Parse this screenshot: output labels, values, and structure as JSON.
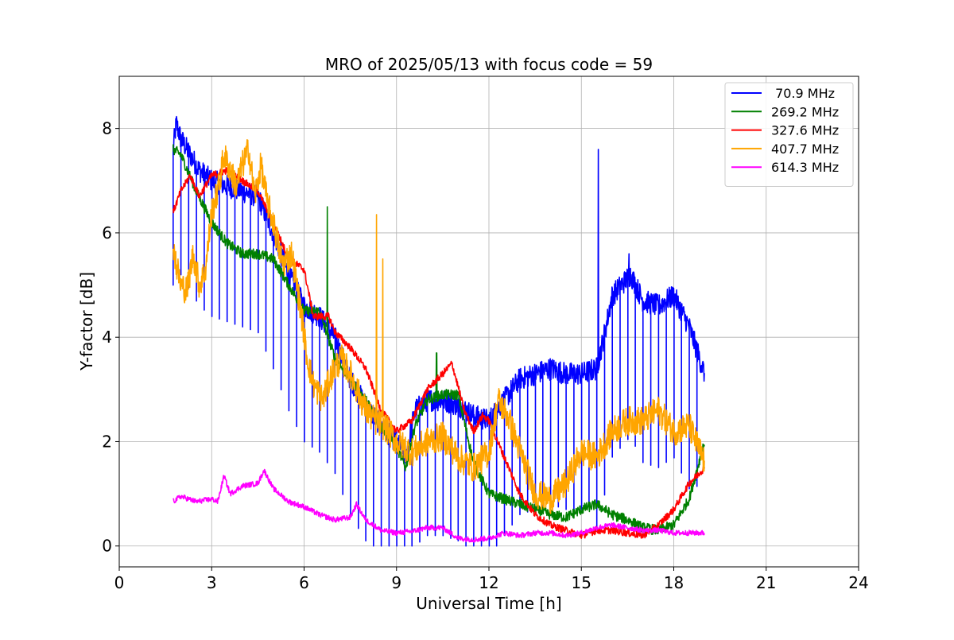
{
  "chart_data": {
    "type": "line",
    "title": "MRO of 2025/05/13 with focus code = 59",
    "xlabel": "Universal Time [h]",
    "ylabel": "Y-factor [dB]",
    "xlim": [
      0,
      24
    ],
    "ylim": [
      -0.4,
      9.0
    ],
    "xticks": [
      0,
      3,
      6,
      9,
      12,
      15,
      18,
      21,
      24
    ],
    "yticks": [
      0,
      2,
      4,
      6,
      8
    ],
    "grid": true,
    "legend_position": "top-right",
    "series": [
      {
        "name": " 70.9 MHz",
        "color": "#0000ff",
        "noise": 0.22,
        "dips": true,
        "x": [
          1.75,
          1.85,
          2.0,
          2.3,
          2.6,
          3.0,
          3.5,
          4.0,
          4.5,
          5.0,
          5.5,
          6.0,
          6.5,
          7.0,
          7.5,
          8.0,
          8.5,
          9.0,
          9.3,
          9.6,
          10.0,
          10.5,
          11.0,
          11.5,
          12.0,
          12.5,
          13.0,
          13.5,
          14.0,
          14.5,
          15.0,
          15.5,
          15.8,
          16.0,
          16.3,
          16.6,
          17.0,
          17.5,
          18.0,
          18.5,
          19.0
        ],
        "y": [
          7.6,
          8.1,
          7.8,
          7.5,
          7.2,
          7.0,
          6.9,
          6.8,
          6.7,
          6.0,
          5.2,
          4.6,
          4.4,
          4.0,
          3.2,
          2.7,
          2.3,
          2.0,
          1.7,
          2.6,
          2.8,
          2.8,
          2.7,
          2.5,
          2.4,
          2.8,
          3.2,
          3.3,
          3.4,
          3.3,
          3.3,
          3.4,
          4.2,
          4.8,
          5.0,
          5.2,
          4.7,
          4.6,
          4.8,
          4.2,
          3.3
        ],
        "spikes": [
          {
            "x": 15.55,
            "y": 7.6
          },
          {
            "x": 16.55,
            "y": 5.6
          }
        ]
      },
      {
        "name": "269.2 MHz",
        "color": "#008000",
        "noise": 0.1,
        "dips": false,
        "x": [
          1.75,
          2.0,
          2.5,
          3.0,
          3.5,
          4.0,
          4.5,
          5.0,
          5.5,
          6.0,
          6.5,
          7.0,
          7.5,
          8.0,
          8.5,
          9.0,
          9.3,
          9.6,
          10.0,
          10.5,
          11.0,
          11.5,
          12.0,
          12.5,
          13.0,
          13.5,
          14.0,
          14.5,
          15.0,
          15.5,
          16.0,
          16.5,
          17.0,
          17.5,
          18.0,
          18.5,
          19.0
        ],
        "y": [
          7.6,
          7.5,
          6.8,
          6.2,
          5.8,
          5.6,
          5.6,
          5.5,
          5.0,
          4.5,
          4.5,
          3.6,
          3.2,
          2.8,
          2.3,
          1.9,
          1.5,
          2.3,
          2.8,
          2.9,
          2.9,
          1.6,
          1.0,
          0.9,
          0.8,
          0.7,
          0.6,
          0.55,
          0.7,
          0.8,
          0.6,
          0.5,
          0.35,
          0.3,
          0.4,
          0.9,
          2.0
        ],
        "spikes": [
          {
            "x": 6.75,
            "y": 6.5
          },
          {
            "x": 10.3,
            "y": 3.7
          }
        ]
      },
      {
        "name": "327.6 MHz",
        "color": "#ff0000",
        "noise": 0.07,
        "dips": false,
        "x": [
          1.75,
          2.0,
          2.3,
          2.6,
          3.0,
          3.5,
          4.0,
          4.5,
          5.0,
          5.5,
          6.0,
          6.3,
          6.8,
          7.0,
          7.5,
          8.0,
          8.5,
          9.0,
          9.5,
          10.0,
          10.5,
          10.8,
          11.2,
          11.5,
          11.8,
          12.0,
          12.5,
          13.0,
          13.5,
          14.0,
          14.5,
          15.0,
          15.5,
          16.0,
          16.5,
          17.0,
          17.5,
          18.0,
          18.5,
          19.0
        ],
        "y": [
          6.4,
          6.8,
          7.1,
          6.7,
          7.1,
          7.2,
          7.0,
          6.8,
          6.2,
          5.5,
          5.3,
          4.4,
          4.4,
          4.1,
          3.8,
          3.4,
          2.6,
          2.2,
          2.4,
          3.0,
          3.3,
          3.5,
          2.6,
          2.2,
          2.5,
          2.4,
          1.7,
          1.0,
          0.6,
          0.4,
          0.3,
          0.2,
          0.3,
          0.3,
          0.25,
          0.2,
          0.4,
          0.7,
          1.2,
          1.5
        ],
        "spikes": []
      },
      {
        "name": "407.7 MHz",
        "color": "#ffa500",
        "noise": 0.28,
        "dips": false,
        "x": [
          1.75,
          1.85,
          2.0,
          2.2,
          2.4,
          2.6,
          2.8,
          3.0,
          3.2,
          3.4,
          3.6,
          3.8,
          4.0,
          4.2,
          4.4,
          4.6,
          4.8,
          5.0,
          5.3,
          5.6,
          5.9,
          6.1,
          6.3,
          6.6,
          6.9,
          7.2,
          7.5,
          8.0,
          8.3,
          8.6,
          9.0,
          9.5,
          10.0,
          10.5,
          11.0,
          11.5,
          12.0,
          12.3,
          12.6,
          12.9,
          13.2,
          13.5,
          14.0,
          14.5,
          15.0,
          15.5,
          16.0,
          16.5,
          17.0,
          17.5,
          18.0,
          18.5,
          19.0
        ],
        "y": [
          5.8,
          5.4,
          5.0,
          4.9,
          5.6,
          5.0,
          5.3,
          6.4,
          6.8,
          7.5,
          7.2,
          6.9,
          7.3,
          7.6,
          6.7,
          7.3,
          6.6,
          6.2,
          5.4,
          5.6,
          4.5,
          3.6,
          3.1,
          2.8,
          3.3,
          3.6,
          3.3,
          2.6,
          2.4,
          2.3,
          2.0,
          1.8,
          2.0,
          2.1,
          1.7,
          1.5,
          1.8,
          2.8,
          2.5,
          2.0,
          1.5,
          1.0,
          0.9,
          1.2,
          1.8,
          1.7,
          2.2,
          2.4,
          2.4,
          2.6,
          2.2,
          2.3,
          1.6
        ],
        "spikes": [
          {
            "x": 8.35,
            "y": 6.35
          },
          {
            "x": 8.55,
            "y": 5.5
          }
        ]
      },
      {
        "name": "614.3 MHz",
        "color": "#ff00ff",
        "noise": 0.05,
        "dips": false,
        "x": [
          1.75,
          2.0,
          2.5,
          3.0,
          3.2,
          3.4,
          3.6,
          4.0,
          4.5,
          4.7,
          5.0,
          5.5,
          6.0,
          6.5,
          7.0,
          7.5,
          7.7,
          8.0,
          8.5,
          9.0,
          9.5,
          10.0,
          10.5,
          11.0,
          11.5,
          12.0,
          12.5,
          13.0,
          13.5,
          14.0,
          14.5,
          15.0,
          15.5,
          16.0,
          16.5,
          17.0,
          17.5,
          18.0,
          18.5,
          19.0
        ],
        "y": [
          0.85,
          0.95,
          0.85,
          0.9,
          0.85,
          1.35,
          1.0,
          1.15,
          1.2,
          1.45,
          1.1,
          0.85,
          0.75,
          0.6,
          0.5,
          0.55,
          0.8,
          0.5,
          0.3,
          0.25,
          0.28,
          0.35,
          0.35,
          0.15,
          0.12,
          0.15,
          0.25,
          0.2,
          0.25,
          0.25,
          0.2,
          0.25,
          0.35,
          0.4,
          0.35,
          0.3,
          0.3,
          0.25,
          0.25,
          0.25
        ],
        "spikes": []
      }
    ]
  }
}
